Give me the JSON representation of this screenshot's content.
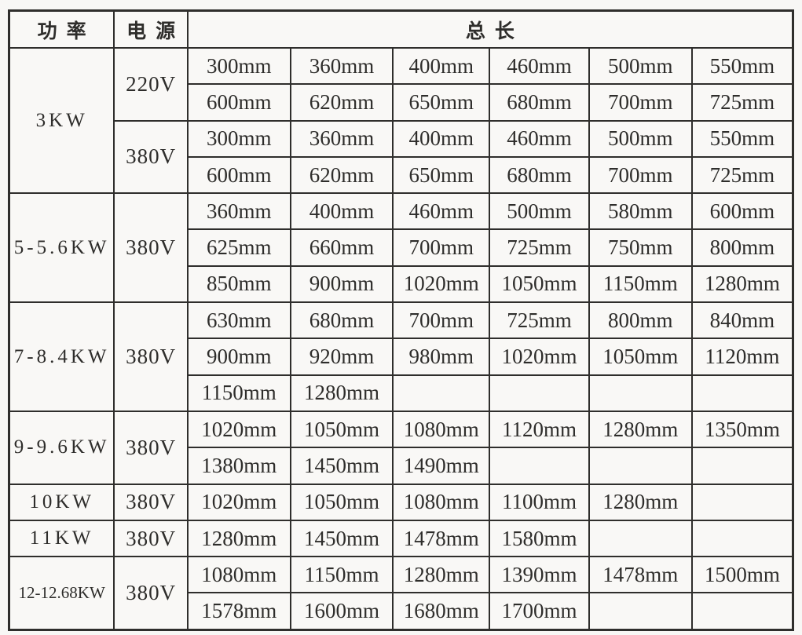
{
  "table": {
    "headers": {
      "power": "功率",
      "voltage": "电源",
      "length": "总长"
    },
    "groups": [
      {
        "power": "3KW",
        "subgroups": [
          {
            "voltage": "220V",
            "rows": [
              [
                "300mm",
                "360mm",
                "400mm",
                "460mm",
                "500mm",
                "550mm"
              ],
              [
                "600mm",
                "620mm",
                "650mm",
                "680mm",
                "700mm",
                "725mm"
              ]
            ]
          },
          {
            "voltage": "380V",
            "rows": [
              [
                "300mm",
                "360mm",
                "400mm",
                "460mm",
                "500mm",
                "550mm"
              ],
              [
                "600mm",
                "620mm",
                "650mm",
                "680mm",
                "700mm",
                "725mm"
              ]
            ]
          }
        ]
      },
      {
        "power": "5-5.6KW",
        "subgroups": [
          {
            "voltage": "380V",
            "rows": [
              [
                "360mm",
                "400mm",
                "460mm",
                "500mm",
                "580mm",
                "600mm"
              ],
              [
                "625mm",
                "660mm",
                "700mm",
                "725mm",
                "750mm",
                "800mm"
              ],
              [
                "850mm",
                "900mm",
                "1020mm",
                "1050mm",
                "1150mm",
                "1280mm"
              ]
            ]
          }
        ]
      },
      {
        "power": "7-8.4KW",
        "subgroups": [
          {
            "voltage": "380V",
            "rows": [
              [
                "630mm",
                "680mm",
                "700mm",
                "725mm",
                "800mm",
                "840mm"
              ],
              [
                "900mm",
                "920mm",
                "980mm",
                "1020mm",
                "1050mm",
                "1120mm"
              ],
              [
                "1150mm",
                "1280mm",
                "",
                "",
                "",
                ""
              ]
            ]
          }
        ]
      },
      {
        "power": "9-9.6KW",
        "subgroups": [
          {
            "voltage": "380V",
            "rows": [
              [
                "1020mm",
                "1050mm",
                "1080mm",
                "1120mm",
                "1280mm",
                "1350mm"
              ],
              [
                "1380mm",
                "1450mm",
                "1490mm",
                "",
                "",
                ""
              ]
            ]
          }
        ]
      },
      {
        "power": "10KW",
        "subgroups": [
          {
            "voltage": "380V",
            "rows": [
              [
                "1020mm",
                "1050mm",
                "1080mm",
                "1100mm",
                "1280mm",
                ""
              ]
            ]
          }
        ]
      },
      {
        "power": "11KW",
        "subgroups": [
          {
            "voltage": "380V",
            "rows": [
              [
                "1280mm",
                "1450mm",
                "1478mm",
                "1580mm",
                "",
                ""
              ]
            ]
          }
        ]
      },
      {
        "power": "12-12.68KW",
        "subgroups": [
          {
            "voltage": "380V",
            "rows": [
              [
                "1080mm",
                "1150mm",
                "1280mm",
                "1390mm",
                "1478mm",
                "1500mm"
              ],
              [
                "1578mm",
                "1600mm",
                "1680mm",
                "1700mm",
                "",
                ""
              ]
            ]
          }
        ]
      }
    ]
  },
  "colors": {
    "border": "#2f2e2c",
    "text": "#2e2d2b",
    "background": "#f8f7f5"
  }
}
